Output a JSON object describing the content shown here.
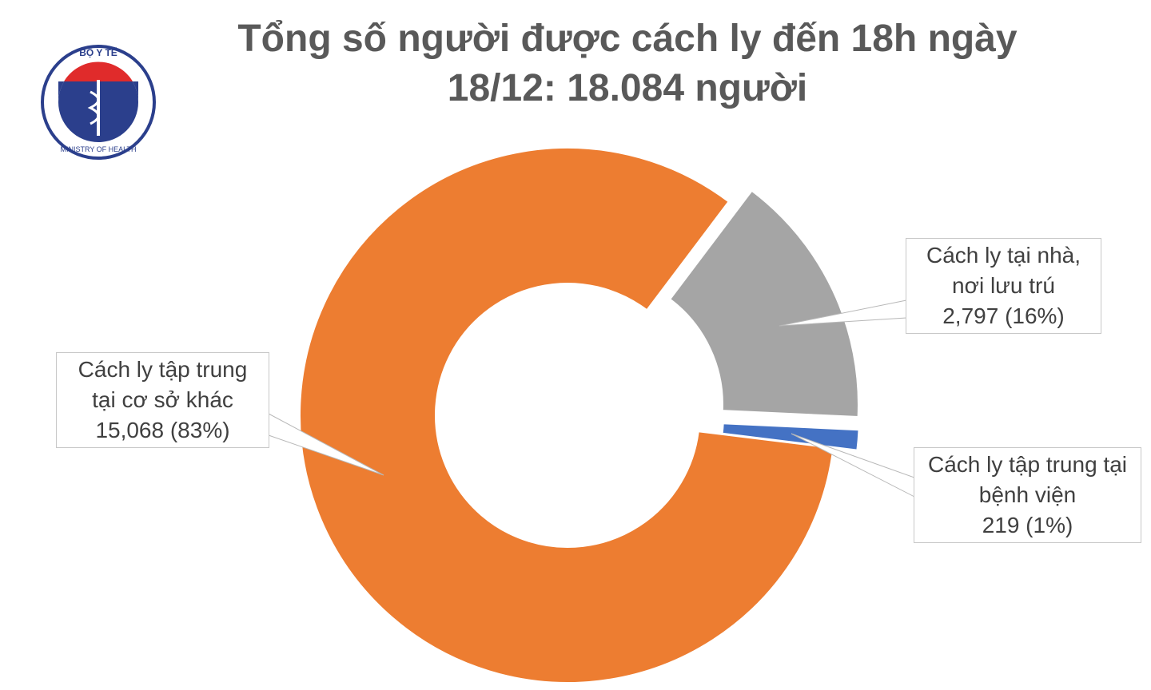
{
  "logo": {
    "top": "BỘ Y TẾ",
    "bottom": "MINISTRY OF HEALTH"
  },
  "chart_data": {
    "type": "donut",
    "title": "Tổng số người được cách ly đến 18h ngày\n18/12: 18.084 người",
    "categories": [
      "Cách ly tại nhà,\nnơi lưu trú",
      "Cách ly tập trung tại\nbệnh viện",
      "Cách ly tập trung\ntại cơ sở khác"
    ],
    "values": [
      2797,
      219,
      15068
    ],
    "value_labels": [
      "2,797 (16%)",
      "219 (1%)",
      "15,068 (83%)"
    ],
    "colors": [
      "#a5a5a5",
      "#4472c4",
      "#ed7d31"
    ]
  }
}
